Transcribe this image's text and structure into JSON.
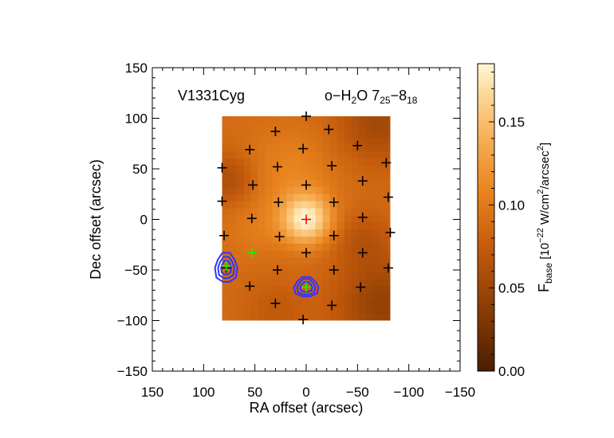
{
  "chart_data": {
    "type": "heatmap",
    "xlabel": "RA offset (arcsec)",
    "ylabel": "Dec offset (arcsec)",
    "xlim": [
      150,
      -150
    ],
    "ylim": [
      -150,
      150
    ],
    "x_ticks": [
      150,
      100,
      50,
      0,
      -50,
      -100,
      -150
    ],
    "y_ticks": [
      -150,
      -100,
      -50,
      0,
      50,
      100,
      150
    ],
    "x_tick_labels": [
      "150",
      "100",
      "50",
      "0",
      "−50",
      "−100",
      "−150"
    ],
    "y_tick_labels": [
      "−150",
      "−100",
      "−50",
      "0",
      "50",
      "100",
      "150"
    ],
    "annotations": {
      "source": "V1331Cyg",
      "line_prefix": "o−H",
      "line_sub1": "2",
      "line_mid": "O 7",
      "line_sub2": "25",
      "line_mid2": "−8",
      "line_sub3": "18"
    },
    "map_extent": {
      "x": [
        82,
        -82
      ],
      "y": [
        -100,
        102
      ]
    },
    "peak": {
      "x": 0,
      "y": 0,
      "value": 0.18
    },
    "colorbar": {
      "min": 0.0,
      "max": 0.185,
      "ticks": [
        0.0,
        0.05,
        0.1,
        0.15
      ],
      "tick_labels": [
        "0.00",
        "0.05",
        "0.10",
        "0.15"
      ],
      "label_main": "F",
      "label_sub": "base",
      "label_bracket_open": " [10",
      "label_exp": "−22",
      "label_unit1": " W/cm",
      "label_exp2": "2",
      "label_unit2": "/arcsec",
      "label_exp3": "2",
      "label_bracket_close": "]"
    },
    "spaxels_black": [
      [
        0,
        102
      ],
      [
        30,
        87
      ],
      [
        -22,
        89
      ],
      [
        55,
        69
      ],
      [
        3,
        70
      ],
      [
        -50,
        73
      ],
      [
        82,
        51
      ],
      [
        28,
        52
      ],
      [
        -25,
        53
      ],
      [
        -78,
        56
      ],
      [
        52,
        34
      ],
      [
        0,
        34
      ],
      [
        -55,
        38
      ],
      [
        82,
        18
      ],
      [
        27,
        17
      ],
      [
        -27,
        17
      ],
      [
        -80,
        22
      ],
      [
        53,
        1
      ],
      [
        -55,
        2
      ],
      [
        -82,
        -13
      ],
      [
        80,
        -16
      ],
      [
        26,
        -17
      ],
      [
        -27,
        -16
      ],
      [
        0,
        -33
      ],
      [
        -55,
        -33
      ],
      [
        78,
        -48
      ],
      [
        28,
        -50
      ],
      [
        -27,
        -50
      ],
      [
        -80,
        -48
      ],
      [
        55,
        -66
      ],
      [
        -53,
        -67
      ],
      [
        30,
        -83
      ],
      [
        -25,
        -85
      ],
      [
        3,
        -99
      ]
    ],
    "spaxels_green": [
      [
        53,
        -33
      ],
      [
        78,
        -46
      ],
      [
        0,
        -67
      ]
    ],
    "spaxel_red": [
      0,
      0
    ],
    "colors": {
      "spaxel": "#000000",
      "central": "#ff0000",
      "green": "#00ff00",
      "contour": "#3333ff"
    }
  }
}
